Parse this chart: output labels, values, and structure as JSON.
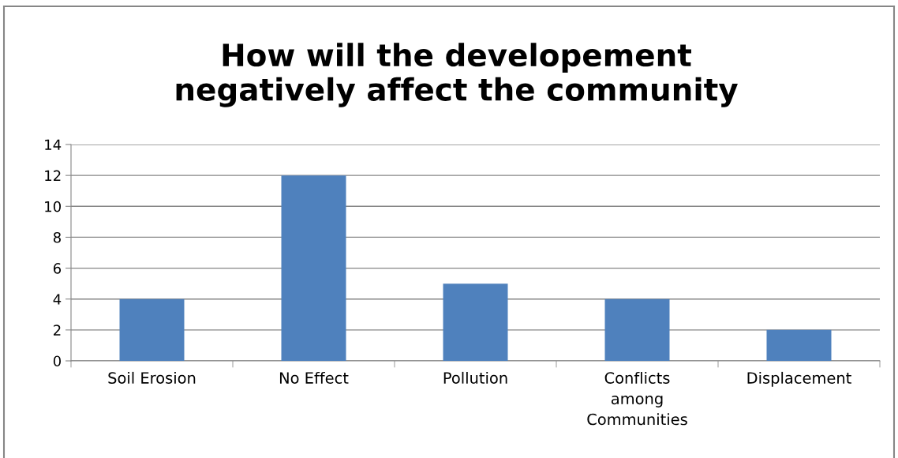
{
  "chart_data": {
    "type": "bar",
    "title": "How will the developement\nnegatively affect the community",
    "categories": [
      "Soil Erosion",
      "No Effect",
      "Pollution",
      "Conflicts\namong\nCommunities",
      "Displacement"
    ],
    "values": [
      4,
      12,
      5,
      4,
      2
    ],
    "color": "#4f81bd",
    "ylim": [
      0,
      14
    ],
    "yticks": [
      0,
      2,
      4,
      6,
      8,
      10,
      12,
      14
    ],
    "grid": "y"
  }
}
